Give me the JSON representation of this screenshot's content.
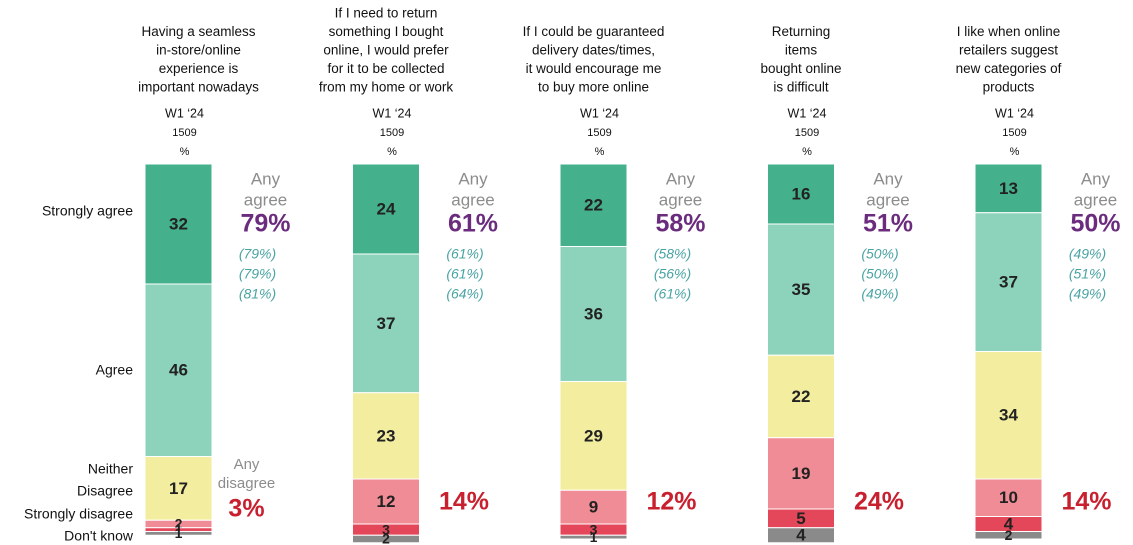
{
  "chart_data": {
    "type": "stacked_bar",
    "categories": [
      [
        "Having a seamless",
        "in-store/online",
        "experience is",
        "important nowadays"
      ],
      [
        "If I need to return",
        "something I bought",
        "online, I would prefer",
        "for it to be collected",
        "from my home or work"
      ],
      [
        "If I could be guaranteed",
        "delivery dates/times,",
        "it would encourage me",
        "to buy more online"
      ],
      [
        "Returning",
        "items",
        "bought online",
        "is difficult"
      ],
      [
        "I like when online",
        "retailers suggest",
        "new categories of",
        "products"
      ]
    ],
    "wave": "W1 ‘24",
    "base": "1509",
    "unit": "%",
    "series": [
      {
        "name": "Strongly agree",
        "color": "#45b08c",
        "values": [
          32,
          24,
          22,
          16,
          13
        ]
      },
      {
        "name": "Agree",
        "color": "#8dd3bb",
        "values": [
          46,
          37,
          36,
          35,
          37
        ]
      },
      {
        "name": "Neither",
        "color": "#f3ee9f",
        "values": [
          17,
          23,
          29,
          22,
          34
        ]
      },
      {
        "name": "Disagree",
        "color": "#f08c96",
        "values": [
          2,
          12,
          9,
          19,
          10
        ]
      },
      {
        "name": "Strongly disagree",
        "color": "#e5475a",
        "values": [
          1,
          3,
          3,
          5,
          4
        ]
      },
      {
        "name": "Don't know",
        "color": "#8a8a8a",
        "values": [
          1,
          2,
          1,
          4,
          2
        ]
      }
    ],
    "any_agree": {
      "label": [
        "Any",
        "agree"
      ],
      "values": [
        79,
        61,
        58,
        51,
        50
      ],
      "value_labels": [
        "79%",
        "61%",
        "58%",
        "51%",
        "50%"
      ],
      "trend_values": [
        [
          79,
          79,
          81
        ],
        [
          61,
          61,
          64
        ],
        [
          58,
          56,
          61
        ],
        [
          50,
          50,
          49
        ],
        [
          49,
          51,
          49
        ]
      ],
      "trend_labels": [
        [
          "(79%)",
          "(79%)",
          "(81%)"
        ],
        [
          "(61%)",
          "(61%)",
          "(64%)"
        ],
        [
          "(58%)",
          "(56%)",
          "(61%)"
        ],
        [
          "(50%)",
          "(50%)",
          "(49%)"
        ],
        [
          "(49%)",
          "(51%)",
          "(49%)"
        ]
      ]
    },
    "any_disagree": {
      "label": [
        "Any",
        "disagree"
      ],
      "values": [
        3,
        14,
        12,
        24,
        14
      ],
      "value_labels": [
        "3%",
        "14%",
        "12%",
        "24%",
        "14%"
      ]
    }
  }
}
